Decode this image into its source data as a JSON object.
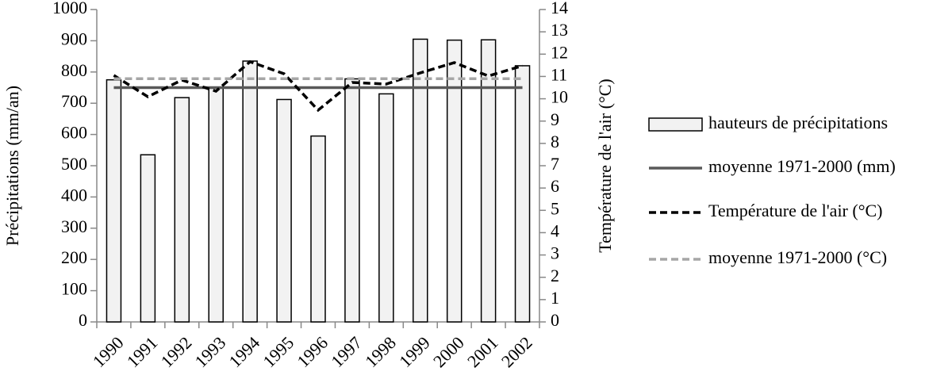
{
  "chart_data": {
    "type": "combo",
    "categories": [
      "1990",
      "1991",
      "1992",
      "1993",
      "1994",
      "1995",
      "1996",
      "1997",
      "1998",
      "1999",
      "2000",
      "2001",
      "2002"
    ],
    "ylabel": "Précipitations (mm/an)",
    "y2label": "Température de l'air (°C)",
    "ylim": [
      0,
      1000
    ],
    "yticks": [
      0,
      100,
      200,
      300,
      400,
      500,
      600,
      700,
      800,
      900,
      1000
    ],
    "y2lim": [
      0,
      14
    ],
    "y2ticks": [
      0,
      1,
      2,
      3,
      4,
      5,
      6,
      7,
      8,
      9,
      10,
      11,
      12,
      13,
      14
    ],
    "legend": "right",
    "series": [
      {
        "name": "hauteurs de précipitations",
        "type": "bar",
        "color": "#f2f2f2",
        "values": [
          775,
          535,
          718,
          750,
          835,
          712,
          595,
          778,
          730,
          905,
          902,
          903,
          820
        ]
      },
      {
        "name": "moyenne 1971-2000 (mm)",
        "type": "line",
        "color": "#595959",
        "dashed": false,
        "values": [
          750,
          750,
          750,
          750,
          750,
          750,
          750,
          750,
          750,
          750,
          750,
          750,
          750
        ]
      },
      {
        "name": "Température de l'air (°C)",
        "type": "line",
        "axis": "y2",
        "color": "#000000",
        "dashed": true,
        "values": [
          11.05,
          10.09,
          10.84,
          10.34,
          11.66,
          11.12,
          9.49,
          10.73,
          10.66,
          11.16,
          11.62,
          11.02,
          11.48
        ]
      },
      {
        "name": "moyenne 1971-2000 (°C)",
        "type": "line",
        "axis": "y2",
        "color": "#a6a6a6",
        "dashed": true,
        "values": [
          10.9,
          10.9,
          10.9,
          10.9,
          10.9,
          10.9,
          10.9,
          10.9,
          10.9,
          10.9,
          10.9,
          10.9,
          10.9
        ]
      }
    ]
  }
}
